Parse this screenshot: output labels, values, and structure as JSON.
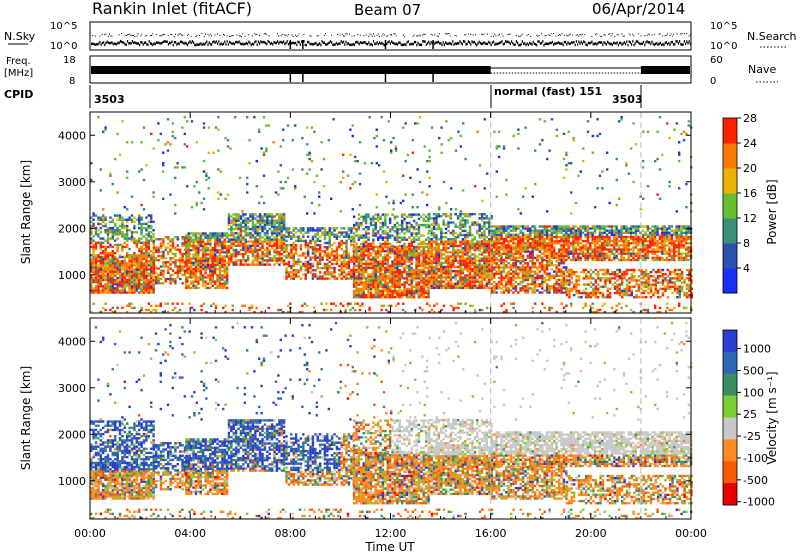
{
  "header": {
    "station": "Rankin Inlet (fitACF)",
    "beam": "Beam 07",
    "date": "06/Apr/2014"
  },
  "summary_panels": {
    "nsky": {
      "label": "N.Sky",
      "left_ticks": [
        "10^5",
        "10^0"
      ],
      "right_ticks": [
        "10^5",
        "10^0"
      ],
      "right_label": "N.Search"
    },
    "freq": {
      "label_line1": "Freq.",
      "label_line2": "[MHz]",
      "left_ticks": [
        "18",
        "8"
      ],
      "right_ticks": [
        "60",
        "0"
      ],
      "right_label": "Nave"
    },
    "cpid": {
      "label": "CPID",
      "segments": [
        {
          "start_h": 0,
          "end_h": 16,
          "label": "3503"
        },
        {
          "start_h": 16,
          "end_h": 22,
          "label": "normal (fast) 151"
        },
        {
          "start_h": 22,
          "end_h": 24,
          "label": "3503"
        }
      ]
    }
  },
  "chart_data": [
    {
      "type": "heatmap",
      "name": "Power",
      "ylabel": "Slant Range [km]",
      "ylim": [
        180,
        4500
      ],
      "yticks": [
        1000,
        2000,
        3000,
        4000
      ],
      "xlim": [
        0,
        24
      ],
      "colorbar": {
        "label": "Power [dB]",
        "ticks": [
          "4",
          "8",
          "12",
          "16",
          "20",
          "24",
          "28"
        ],
        "colors": [
          "#1c2ef0",
          "#2b51b0",
          "#3a8f7a",
          "#65bf2e",
          "#e9b300",
          "#ff7b00",
          "#ff2200"
        ]
      }
    },
    {
      "type": "heatmap",
      "name": "Velocity",
      "ylabel": "Slant Range [km]",
      "ylim": [
        180,
        4500
      ],
      "yticks": [
        1000,
        2000,
        3000,
        4000
      ],
      "xlabel": "Time UT",
      "xticks": [
        "00:00",
        "04:00",
        "08:00",
        "12:00",
        "16:00",
        "20:00",
        "00:00"
      ],
      "xlim": [
        0,
        24
      ],
      "colorbar": {
        "label": "Velocity [m s⁻¹]",
        "ticks": [
          "1000",
          "500",
          "100",
          "25",
          "-25",
          "-100",
          "-500",
          "-1000"
        ],
        "colors": [
          "#2a3fd0",
          "#2f66b4",
          "#3c8e60",
          "#7ccc32",
          "#c8c8c8",
          "#ff8a1e",
          "#ff5a00",
          "#e80000"
        ]
      }
    }
  ]
}
